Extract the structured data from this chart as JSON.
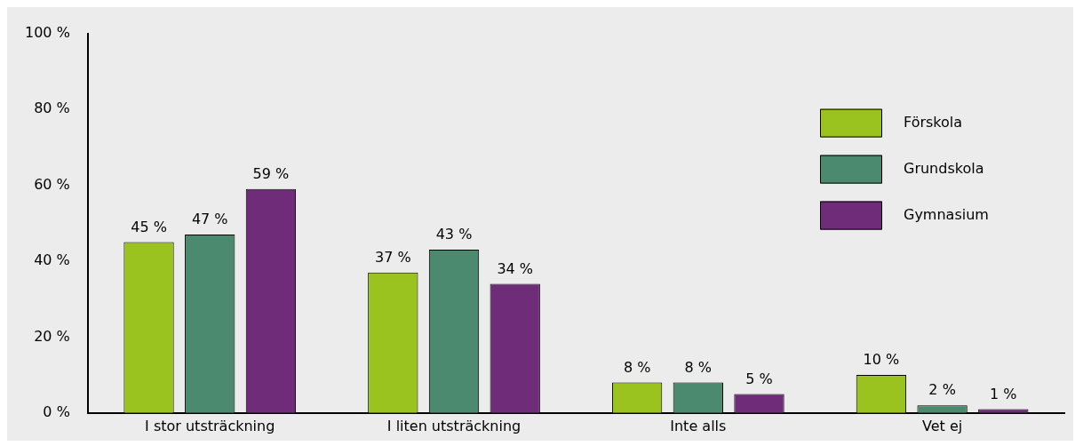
{
  "chart_data": {
    "type": "bar",
    "categories": [
      "I stor utsträckning",
      "I liten utsträckning",
      "Inte alls",
      "Vet ej"
    ],
    "series": [
      {
        "name": "Förskola",
        "color": "#9bc31f",
        "values": [
          45,
          37,
          8,
          10
        ],
        "value_labels": [
          "45 %",
          "37 %",
          "8 %",
          "10 %"
        ]
      },
      {
        "name": "Grundskola",
        "color": "#4b8a6e",
        "values": [
          47,
          43,
          8,
          2
        ],
        "value_labels": [
          "47 %",
          "43 %",
          "8 %",
          "2 %"
        ]
      },
      {
        "name": "Gymnasium",
        "color": "#6f2d79",
        "values": [
          59,
          34,
          5,
          1
        ],
        "value_labels": [
          "59 %",
          "34 %",
          "5 %",
          "1 %"
        ]
      }
    ],
    "ylim": [
      0,
      100
    ],
    "yticks": [
      {
        "value": 0,
        "label": "0 %"
      },
      {
        "value": 20,
        "label": "20 %"
      },
      {
        "value": 40,
        "label": "40 %"
      },
      {
        "value": 60,
        "label": "60 %"
      },
      {
        "value": 80,
        "label": "80 %"
      },
      {
        "value": 100,
        "label": "100 %"
      }
    ],
    "grid": false,
    "legend": "top right"
  }
}
